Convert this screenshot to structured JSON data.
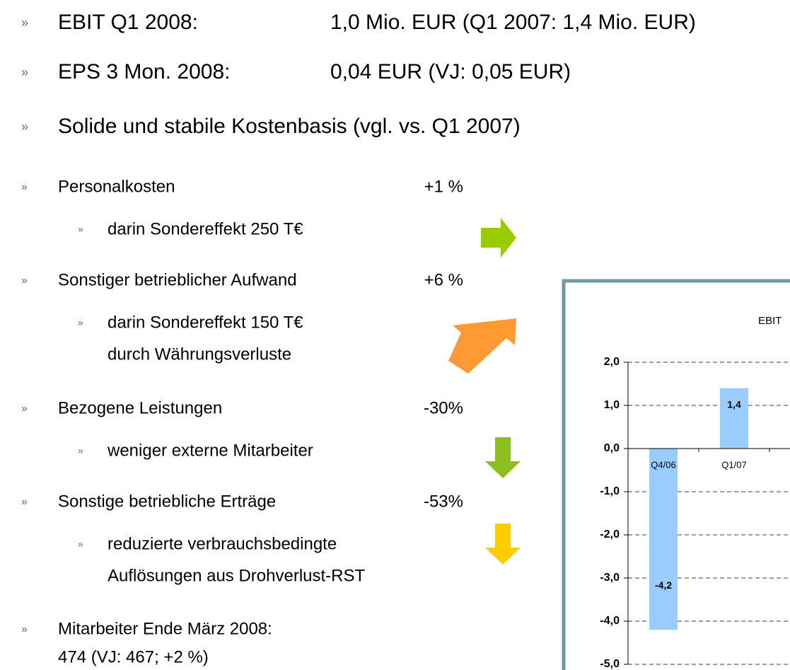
{
  "headline_items": [
    {
      "label": "EBIT Q1 2008:",
      "text": "1,0 Mio. EUR (Q1 2007:  1,4 Mio. EUR)"
    },
    {
      "label": "EPS 3 Mon. 2008:",
      "text": "0,04 EUR (VJ: 0,05 EUR)"
    },
    {
      "label": "Solide und stabile Kostenbasis (vgl. vs. Q1 2007)"
    }
  ],
  "cost_items": [
    {
      "label": "Personalkosten",
      "change": "+1 %",
      "details": [
        "darin Sondereffekt 250 T€"
      ]
    },
    {
      "label": "Sonstiger betrieblicher Aufwand",
      "change": "+6 %",
      "details": [
        "darin Sondereffekt 150 T€",
        "durch Währungsverluste"
      ]
    },
    {
      "label": "Bezogene Leistungen",
      "change": "-30%",
      "details": [
        "weniger externe Mitarbeiter"
      ]
    },
    {
      "label": "Sonstige betriebliche Erträge",
      "change": "-53%",
      "details": [
        "reduzierte verbrauchsbedingte",
        "Auflösungen aus Drohverlust-RST"
      ]
    }
  ],
  "staff": {
    "label": "Mitarbeiter Ende März 2008:",
    "text": "474 (VJ: 467; +2 %)"
  },
  "chart_data": {
    "type": "bar",
    "title": "EBIT",
    "categories": [
      "Q4/06",
      "Q1/07"
    ],
    "values": [
      -4.2,
      1.4
    ],
    "value_labels": [
      "-4,2",
      "1,4"
    ],
    "color": "#99ccff",
    "ylim": [
      -5,
      2
    ],
    "yticks": [
      {
        "value": 2,
        "label": "2,0"
      },
      {
        "value": 1,
        "label": "1,0"
      },
      {
        "value": 0,
        "label": "0,0"
      },
      {
        "value": -1,
        "label": "-1,0"
      },
      {
        "value": -2,
        "label": "-2,0"
      },
      {
        "value": -3,
        "label": "-3,0"
      },
      {
        "value": -4,
        "label": "-4,0"
      },
      {
        "value": -5,
        "label": "-5,0"
      }
    ],
    "grid": true
  }
}
